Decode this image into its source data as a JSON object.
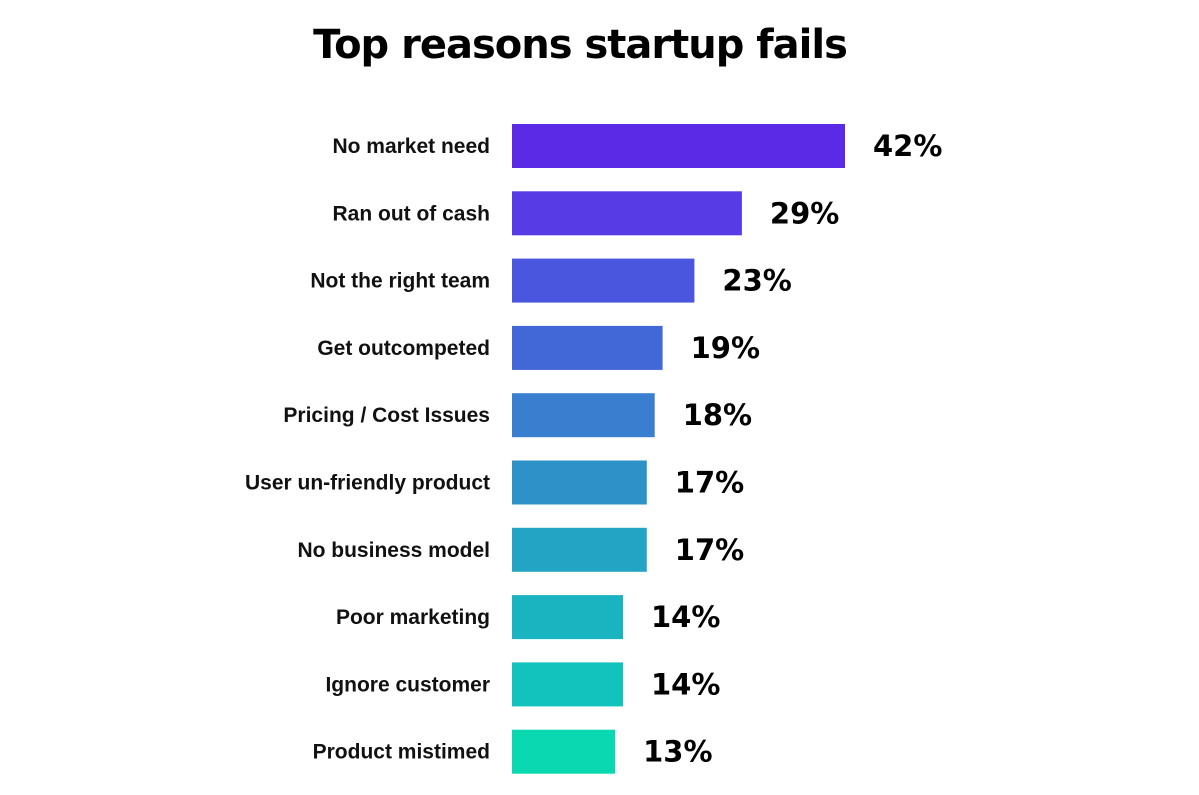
{
  "chart_data": {
    "type": "bar",
    "orientation": "horizontal",
    "title": "Top reasons startup fails",
    "xlabel": "",
    "ylabel": "",
    "unit": "%",
    "categories": [
      "No market need",
      "Ran out of cash",
      "Not the right team",
      "Get outcompeted",
      "Pricing / Cost Issues",
      "User un-friendly product",
      "No business model",
      "Poor marketing",
      "Ignore customer",
      "Product mistimed"
    ],
    "values": [
      42,
      29,
      23,
      19,
      18,
      17,
      17,
      14,
      14,
      13
    ],
    "value_labels": [
      "42%",
      "29%",
      "23%",
      "19%",
      "18%",
      "17%",
      "17%",
      "14%",
      "14%",
      "13%"
    ],
    "colors": [
      "#5b2ae6",
      "#573be4",
      "#4a56dd",
      "#4268d8",
      "#3a7ed0",
      "#2e92c8",
      "#23a4c4",
      "#19b4c0",
      "#12c2bc",
      "#0ad8b0"
    ],
    "xlim": [
      0,
      42
    ],
    "grid": false,
    "legend": false
  }
}
